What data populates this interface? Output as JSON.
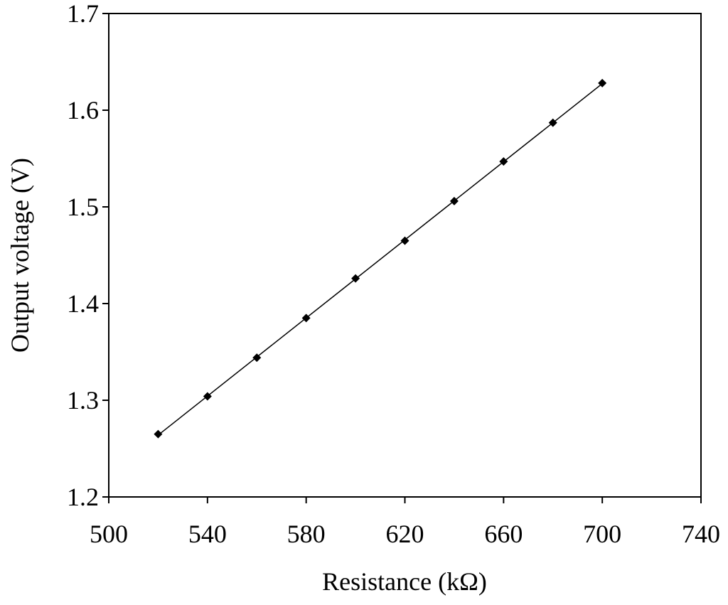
{
  "chart_data": {
    "type": "scatter",
    "x_label": "Resistance (kΩ)",
    "y_label": "Output voltage (V)",
    "x": [
      520,
      540,
      560,
      580,
      600,
      620,
      640,
      660,
      680,
      700
    ],
    "values": [
      1.265,
      1.304,
      1.344,
      1.385,
      1.426,
      1.465,
      1.506,
      1.547,
      1.587,
      1.628
    ],
    "color": "#000000",
    "trendline": true,
    "xlim": [
      500,
      740
    ],
    "xticks": [
      500,
      540,
      580,
      620,
      660,
      700,
      740
    ],
    "ylim": [
      1.2,
      1.7
    ],
    "yticks": [
      1.2,
      1.3,
      1.4,
      1.5,
      1.6,
      1.7
    ],
    "grid": false
  }
}
